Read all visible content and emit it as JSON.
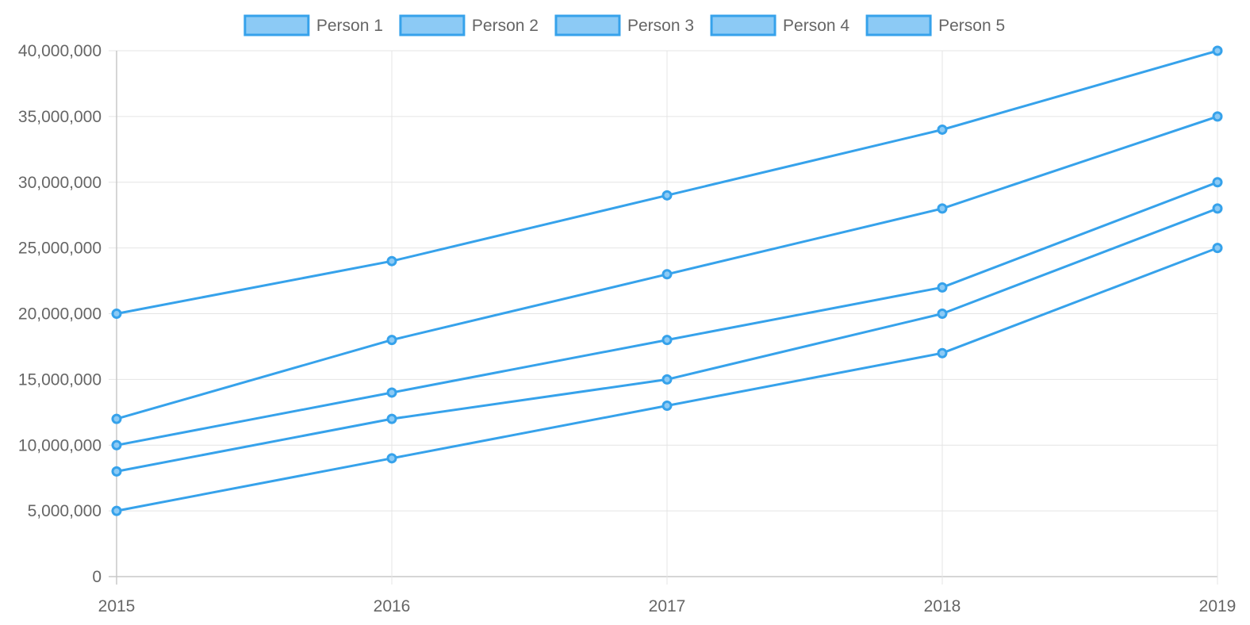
{
  "chart_data": {
    "type": "line",
    "title": "",
    "xlabel": "",
    "ylabel": "",
    "x": [
      "2015",
      "2016",
      "2017",
      "2018",
      "2019"
    ],
    "ylim": [
      0,
      40000000
    ],
    "y_ticks": [
      0,
      5000000,
      10000000,
      15000000,
      20000000,
      25000000,
      30000000,
      35000000,
      40000000
    ],
    "y_tick_labels": [
      "0",
      "5,000,000",
      "10,000,000",
      "15,000,000",
      "20,000,000",
      "25,000,000",
      "30,000,000",
      "35,000,000",
      "40,000,000"
    ],
    "grid": true,
    "legend_position": "top",
    "series": [
      {
        "name": "Person 1",
        "values": [
          20000000,
          24000000,
          29000000,
          34000000,
          40000000
        ]
      },
      {
        "name": "Person 2",
        "values": [
          12000000,
          18000000,
          23000000,
          28000000,
          35000000
        ]
      },
      {
        "name": "Person 3",
        "values": [
          10000000,
          14000000,
          18000000,
          22000000,
          30000000
        ]
      },
      {
        "name": "Person 4",
        "values": [
          8000000,
          12000000,
          15000000,
          20000000,
          28000000
        ]
      },
      {
        "name": "Person 5",
        "values": [
          5000000,
          9000000,
          13000000,
          17000000,
          25000000
        ]
      }
    ],
    "colors": {
      "line": "#36a2eb",
      "fill": "#8ccaf5",
      "grid": "#e4e4e4",
      "axis": "#c8c8c8",
      "text": "#666666"
    }
  }
}
